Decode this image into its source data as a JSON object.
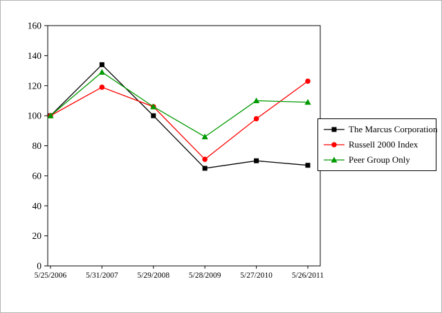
{
  "chart_data": {
    "type": "line",
    "title": "",
    "categories": [
      "5/25/2006",
      "5/31/2007",
      "5/29/2008",
      "5/28/2009",
      "5/27/2010",
      "5/26/2011"
    ],
    "series": [
      {
        "name": "The Marcus Corporation",
        "color": "#000000",
        "marker": "square",
        "values": [
          100,
          134,
          100,
          65,
          70,
          67
        ]
      },
      {
        "name": "Russell 2000 Index",
        "color": "#ff0000",
        "marker": "circle",
        "values": [
          100,
          119,
          106,
          71,
          98,
          123
        ]
      },
      {
        "name": "Peer Group Only",
        "color": "#009900",
        "marker": "triangle",
        "values": [
          100,
          129,
          106,
          86,
          110,
          109
        ]
      }
    ],
    "xlabel": "",
    "ylabel": "",
    "ylim": [
      0,
      160
    ],
    "ytick_step": 20,
    "grid": false,
    "legend_position": "right",
    "plot_border_color": "#000000",
    "background_color": "#ffffff"
  }
}
